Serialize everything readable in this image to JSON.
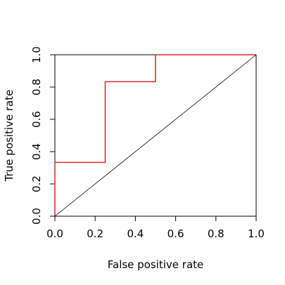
{
  "chart_data": {
    "type": "line",
    "xlabel": "False positive rate",
    "ylabel": "True positive rate",
    "xlim": [
      0,
      1
    ],
    "ylim": [
      0,
      1
    ],
    "x_ticks": [
      "0.0",
      "0.2",
      "0.4",
      "0.6",
      "0.8",
      "1.0"
    ],
    "y_ticks": [
      "0.0",
      "0.2",
      "0.4",
      "0.6",
      "0.8",
      "1.0"
    ],
    "grid": false,
    "legend": false,
    "series": [
      {
        "style": "step",
        "color": "#d62728",
        "x": [
          0.0,
          0.0,
          0.25,
          0.25,
          0.5,
          0.5,
          1.0
        ],
        "y": [
          0.0,
          0.333,
          0.333,
          0.833,
          0.833,
          1.0,
          1.0
        ]
      },
      {
        "style": "diagonal-reference",
        "color": "#000000",
        "x": [
          0.0,
          1.0
        ],
        "y": [
          0.0,
          1.0
        ]
      }
    ]
  }
}
